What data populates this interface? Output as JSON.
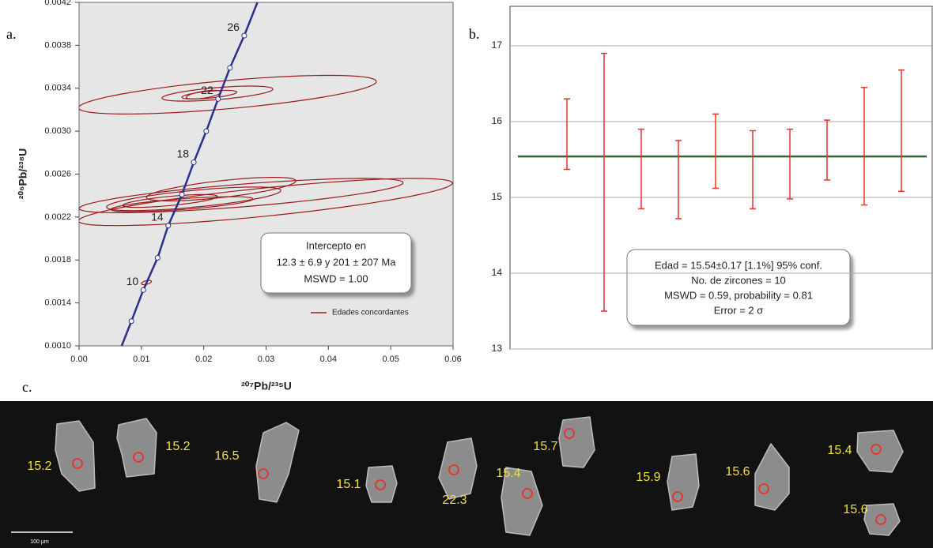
{
  "chart_data": [
    {
      "type": "concordia",
      "panel_label": "a.",
      "x_label": "²⁰⁷Pb/²³⁵U",
      "y_label": "²⁰⁶Pb/²³⁸U",
      "xlim": [
        0,
        0.06
      ],
      "ylim": [
        0.001,
        0.0042
      ],
      "xticks": [
        {
          "value": 0,
          "label": "0.00"
        },
        0.01,
        0.02,
        0.03,
        0.04,
        0.05,
        0.06
      ],
      "yticks": [
        {
          "value": 0.001,
          "label": "0.0010"
        },
        0.0014,
        0.0018,
        0.0022,
        0.0026,
        {
          "value": 0.003,
          "label": "0.0030"
        },
        0.0034,
        0.0038,
        0.0042
      ],
      "concordia": {
        "color": "#2b2f8f",
        "x": [
          0.0084,
          0.0103,
          0.0126,
          0.0143,
          0.0165,
          0.0184,
          0.0204,
          0.0223,
          0.0242,
          0.0265
        ],
        "y": [
          0.00123,
          0.00152,
          0.00182,
          0.00212,
          0.00241,
          0.00271,
          0.003,
          0.0033,
          0.00359,
          0.00389
        ],
        "labels": [
          null,
          10,
          null,
          14,
          null,
          18,
          null,
          22,
          null,
          26
        ]
      },
      "ellipses": {
        "name": "Edades concordantes",
        "color": "#9b1b1b",
        "x": [
          0.0238,
          0.0222,
          0.0209,
          0.02,
          0.0299,
          0.026,
          0.0228,
          0.0184,
          0.0165,
          0.0146,
          0.0108
        ],
        "y": [
          0.00334,
          0.00335,
          0.00334,
          0.00334,
          0.00234,
          0.0024,
          0.00246,
          0.00237,
          0.00232,
          0.00235,
          0.00159
        ],
        "x_err": [
          0.0239,
          0.0089,
          0.0044,
          0.0028,
          0.03,
          0.026,
          0.012,
          0.014,
          0.0114,
          0.0076,
          0.0008
        ],
        "y_err": [
          0.00018,
          7e-05,
          4e-05,
          4e-05,
          0.00022,
          0.00016,
          0.00011,
          0.00011,
          7e-05,
          6e-05,
          2e-05
        ],
        "rho": [
          0.68,
          0.6,
          0.6,
          0.6,
          0.8,
          0.75,
          0.7,
          0.7,
          0.7,
          0.7,
          0.5
        ]
      },
      "annotation": [
        "Intercepto en",
        "12.3 ± 6.9 y 201 ± 207 Ma",
        "MSWD = 1.00"
      ],
      "grid": false
    },
    {
      "type": "errorbar",
      "panel_label": "b.",
      "ylim": [
        13,
        17.5
      ],
      "yticks": [
        13,
        14,
        15,
        16,
        17
      ],
      "grid": true,
      "values": [
        15.835,
        15.2,
        15.375,
        15.235,
        15.61,
        15.365,
        15.44,
        15.625,
        15.675,
        15.88
      ],
      "errors": [
        0.465,
        1.7,
        0.525,
        0.515,
        0.49,
        0.515,
        0.46,
        0.395,
        0.775,
        0.8
      ],
      "color": "#e8322b",
      "mean": 15.54,
      "mean_color": "#2e6b2e",
      "annotation": [
        "Edad = 15.54±0.17  [1.1%]  95% conf.",
        "No. de zircones = 10",
        "MSWD = 0.59, probability = 0.81",
        "Error = 2 σ"
      ]
    }
  ],
  "image": {
    "panel_label": "c.",
    "scale_bar": "100 μm",
    "ages": [
      15.2,
      15.2,
      16.5,
      15.1,
      22.3,
      15.4,
      15.7,
      15.9,
      15.6,
      15.4,
      15.6
    ]
  }
}
